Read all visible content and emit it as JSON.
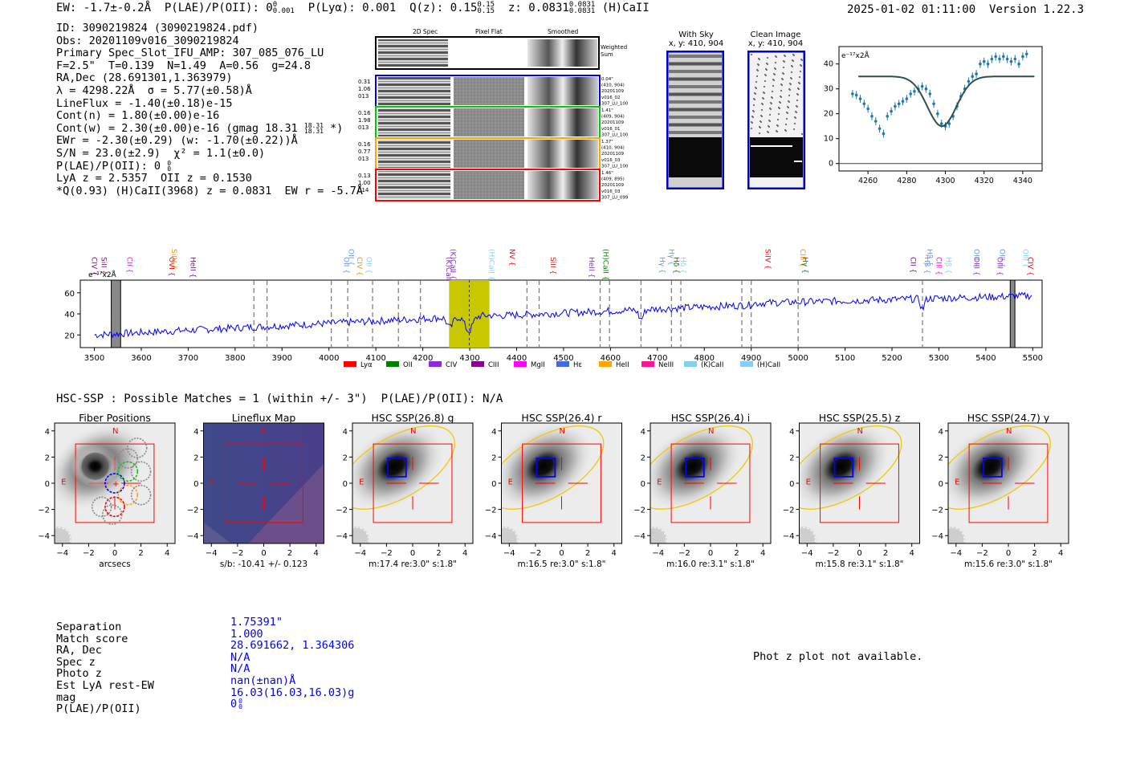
{
  "header": {
    "ew": "EW: -1.7±-0.2Å",
    "plae": "P(LAE)/P(OII): 0",
    "plae_sup": "0",
    "plae_sub": "0.001",
    "plya": "P(Lyα): 0.001",
    "qz": "Q(z): 0.15",
    "qz_sup": "0.15",
    "qz_sub": "0.15",
    "z": "z: 0.0831",
    "z_sup": "0.0831",
    "z_sub": "0.0831",
    "line": "(H)CaII",
    "datetime": "2025-01-02 01:11:00",
    "version": "Version 1.22.3"
  },
  "info": {
    "id": "ID: 3090219824 (3090219824.pdf)",
    "obs": "Obs: 20201109v016_3090219824",
    "primary": "Primary Spec_Slot_IFU_AMP: 307_085_076_LU",
    "fparams": "F=2.5\"  T=0.139  N=1.49  A=0.56  g=24.8",
    "radec": "RA,Dec (28.691301,1.363979)",
    "lambda": "λ = 4298.22Å  σ = 5.77(±0.58)Å",
    "lineflux": "LineFlux = -1.40(±0.18)e-15",
    "contn": "Cont(n) = 1.80(±0.00)e-16",
    "contw": "Cont(w) = 2.30(±0.00)e-16 (gmag 18.31",
    "contw_sup": "18.31",
    "contw_sub": "18.31",
    "contw_end": " *)",
    "ewr": "EWr = -2.30(±0.29) (w: -1.70(±0.22))Å",
    "sn": "S/N = 23.0(±2.9)  χ² = 1.1(±0.0)",
    "plae": "P(LAE)/P(OII): 0",
    "plae_sup": "0",
    "plae_sub": "0",
    "lya": "LyA z = 2.5357  OII z = 0.1530",
    "q": "*Q(0.93) (H)CaII(3968) z = 0.0831  EW r = -5.7Å"
  },
  "spec2d": {
    "col_headers": [
      "2D Spec",
      "Pixel Flat",
      "Smoothed"
    ],
    "weighted_sum": [
      "Weighted",
      "Sum"
    ],
    "rows": [
      {
        "left": [
          "0.31",
          "1.06",
          "013"
        ],
        "right": [
          "0.04\"",
          "(410, 904)",
          "20201109",
          "v016_02",
          "307_LU_100"
        ]
      },
      {
        "left": [
          "0.16",
          "1.98",
          "013"
        ],
        "right": [
          "1.41\"",
          "(409, 904)",
          "20201109",
          "v016_01",
          "307_LU_100"
        ]
      },
      {
        "left": [
          "0.16",
          "0.77",
          "013"
        ],
        "right": [
          "1.37\"",
          "(410, 904)",
          "20201109",
          "v016_03",
          "307_LU_100"
        ]
      },
      {
        "left": [
          "0.13",
          "1.00",
          "014"
        ],
        "right": [
          "1.46\"",
          "(409, 895)",
          "20201109",
          "v016_03",
          "307_LU_099"
        ]
      }
    ]
  },
  "cutouts": {
    "with_sky_title": "With Sky",
    "with_sky_xy": "x, y: 410, 904",
    "clean_title": "Clean Image",
    "clean_xy": "x, y: 410, 904"
  },
  "zoom_plot": {
    "unit_label": "e⁻¹⁷x2Å",
    "xticks": [
      "4260",
      "4280",
      "4300",
      "4320",
      "4340"
    ],
    "yticks": [
      "0",
      "10",
      "20",
      "30",
      "40"
    ],
    "points": [
      [
        4252,
        28
      ],
      [
        4254,
        27.5
      ],
      [
        4256,
        26
      ],
      [
        4258,
        24
      ],
      [
        4260,
        22
      ],
      [
        4262,
        19
      ],
      [
        4264,
        17
      ],
      [
        4266,
        14
      ],
      [
        4268,
        12
      ],
      [
        4270,
        19
      ],
      [
        4272,
        21
      ],
      [
        4274,
        23
      ],
      [
        4276,
        24
      ],
      [
        4278,
        25
      ],
      [
        4280,
        26
      ],
      [
        4282,
        28
      ],
      [
        4284,
        29
      ],
      [
        4286,
        30
      ],
      [
        4288,
        31
      ],
      [
        4290,
        30
      ],
      [
        4292,
        28
      ],
      [
        4294,
        24
      ],
      [
        4296,
        20
      ],
      [
        4298,
        16
      ],
      [
        4300,
        15
      ],
      [
        4302,
        16
      ],
      [
        4304,
        19
      ],
      [
        4306,
        23
      ],
      [
        4308,
        27
      ],
      [
        4310,
        30
      ],
      [
        4312,
        33
      ],
      [
        4314,
        35
      ],
      [
        4316,
        36
      ],
      [
        4318,
        40
      ],
      [
        4320,
        41
      ],
      [
        4322,
        40
      ],
      [
        4324,
        42
      ],
      [
        4326,
        43
      ],
      [
        4328,
        42
      ],
      [
        4330,
        43
      ],
      [
        4332,
        42
      ],
      [
        4334,
        41
      ],
      [
        4336,
        42
      ],
      [
        4338,
        40
      ],
      [
        4340,
        43
      ],
      [
        4342,
        44
      ]
    ]
  },
  "spectrum": {
    "unit_label": "e⁻¹⁷x2Å",
    "xticks": [
      "3500",
      "3600",
      "3700",
      "3800",
      "3900",
      "4000",
      "4100",
      "4200",
      "4300",
      "4400",
      "4500",
      "4600",
      "4700",
      "4800",
      "4900",
      "5000",
      "5100",
      "5200",
      "5300",
      "5400",
      "5500"
    ],
    "yticks": [
      "20",
      "40",
      "60"
    ],
    "line_labels_top": [
      {
        "text": "SiIV",
        "wl": 3660,
        "color": "#ff8c00"
      },
      {
        "text": "OII",
        "wl": 4037,
        "color": "#6495ed"
      },
      {
        "text": "(K)CaII",
        "wl": 4255,
        "color": "#8a2be2"
      },
      {
        "text": "(H)CaII",
        "wl": 4337,
        "color": "#87cefa"
      },
      {
        "text": "NV",
        "wl": 4380,
        "color": "#ff0000"
      },
      {
        "text": "(H)CaII",
        "wl": 4580,
        "color": "#008000"
      },
      {
        "text": "Hγ",
        "wl": 4720,
        "color": "#6495ed"
      },
      {
        "text": "SiIV",
        "wl": 4925,
        "color": "#ff0000"
      },
      {
        "text": "CIII",
        "wl": 5000,
        "color": "#ff8c00"
      },
      {
        "text": "Hβ",
        "wl": 5270,
        "color": "#6495ed"
      },
      {
        "text": "OIII",
        "wl": 5370,
        "color": "#6495ed"
      },
      {
        "text": "OIII",
        "wl": 5425,
        "color": "#6495ed"
      },
      {
        "text": "OIII",
        "wl": 5475,
        "color": "#87cefa"
      }
    ],
    "line_labels_bottom": [
      {
        "text": "CIV",
        "wl": 3490,
        "color": "#8b008b"
      },
      {
        "text": "SiII",
        "wl": 3510,
        "color": "#8b008b"
      },
      {
        "text": "CII",
        "wl": 3565,
        "color": "#ff00ff"
      },
      {
        "text": "OVI",
        "wl": 3655,
        "color": "#ff0000"
      },
      {
        "text": "HeII",
        "wl": 3700,
        "color": "#8b008b"
      },
      {
        "text": "OII",
        "wl": 4027,
        "color": "#6495ed"
      },
      {
        "text": "CIV",
        "wl": 4055,
        "color": "#ff8c00"
      },
      {
        "text": "OII",
        "wl": 4075,
        "color": "#87cefa"
      },
      {
        "text": "(K)CaII",
        "wl": 4245,
        "color": "#8a2be2"
      },
      {
        "text": "SiII",
        "wl": 4468,
        "color": "#ff0000"
      },
      {
        "text": "HeII",
        "wl": 4550,
        "color": "#8a2be2"
      },
      {
        "text": "Hγ",
        "wl": 4700,
        "color": "#6495ed"
      },
      {
        "text": "Hδ",
        "wl": 4730,
        "color": "#008000"
      },
      {
        "text": "Hδ",
        "wl": 4745,
        "color": "#87cefa"
      },
      {
        "text": "Hγ",
        "wl": 5005,
        "color": "#008000"
      },
      {
        "text": "CII",
        "wl": 5235,
        "color": "#8b008b"
      },
      {
        "text": "Hβ",
        "wl": 5265,
        "color": "#6495ed"
      },
      {
        "text": "CIII",
        "wl": 5290,
        "color": "#ff00ff"
      },
      {
        "text": "Hβ",
        "wl": 5310,
        "color": "#87cefa"
      },
      {
        "text": "OIII",
        "wl": 5370,
        "color": "#8a2be2"
      },
      {
        "text": "OIII",
        "wl": 5420,
        "color": "#8a2be2"
      },
      {
        "text": "CIV",
        "wl": 5485,
        "color": "#ff0000"
      }
    ],
    "legend": [
      {
        "label": "Lyα",
        "color": "#ff0000"
      },
      {
        "label": "OII",
        "color": "#008000"
      },
      {
        "label": "CIV",
        "color": "#8a2be2"
      },
      {
        "label": "CIII",
        "color": "#8b008b"
      },
      {
        "label": "MgII",
        "color": "#ff00ff"
      },
      {
        "label": "Hε",
        "color": "#4169e1"
      },
      {
        "label": "HeII",
        "color": "#ffa500"
      },
      {
        "label": "NeIII",
        "color": "#ff1493"
      },
      {
        "label": "(K)CaII",
        "color": "#87ceeb"
      },
      {
        "label": "(H)CaII",
        "color": "#87cefa"
      }
    ]
  },
  "hsc": {
    "title": "HSC-SSP : Possible Matches = 1 (within +/- 3\")  P(LAE)/P(OII): N/A",
    "panels": [
      {
        "title": "Fiber Positions",
        "caption": "arcsecs",
        "type": "fiber"
      },
      {
        "title": "Lineflux Map",
        "caption": "s/b: -10.41 +/- 0.123",
        "type": "lineflux"
      },
      {
        "title": "HSC SSP(26.8) g",
        "caption": "m:17.4  re:3.0\"  s:1.8\"",
        "type": "hsc"
      },
      {
        "title": "HSC SSP(26.4) r",
        "caption": "m:16.5  re:3.0\"  s:1.8\"",
        "type": "hsc"
      },
      {
        "title": "HSC SSP(26.4) i",
        "caption": "m:16.0  re:3.1\"  s:1.8\"",
        "type": "hsc"
      },
      {
        "title": "HSC SSP(25.5) z",
        "caption": "m:15.8  re:3.1\"  s:1.8\"",
        "type": "hsc"
      },
      {
        "title": "HSC SSP(24.7) y",
        "caption": "m:15.6  re:3.0\"  s:1.8\"",
        "type": "hsc"
      }
    ],
    "axis_ticks": [
      "−4",
      "−2",
      "0",
      "2",
      "4"
    ],
    "n_label": "N",
    "e_label": "E"
  },
  "match": {
    "labels": [
      "Separation",
      "Match score",
      "RA, Dec",
      "Spec z",
      "Photo z",
      "Est LyA rest-EW",
      "mag",
      "P(LAE)/P(OII)"
    ],
    "values": [
      "1.75391\"",
      "1.000",
      "28.691662, 1.364306",
      "N/A",
      "N/A",
      "nan(±nan)Å",
      "16.03(16.03,16.03)g",
      "0"
    ],
    "plae_sup": "0",
    "plae_sub": "0"
  },
  "photz_text": "Phot z plot not available."
}
